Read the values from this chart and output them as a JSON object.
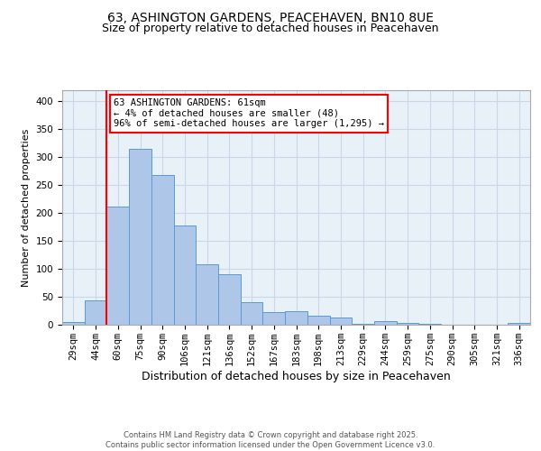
{
  "title_line1": "63, ASHINGTON GARDENS, PEACEHAVEN, BN10 8UE",
  "title_line2": "Size of property relative to detached houses in Peacehaven",
  "xlabel": "Distribution of detached houses by size in Peacehaven",
  "ylabel": "Number of detached properties",
  "categories": [
    "29sqm",
    "44sqm",
    "60sqm",
    "75sqm",
    "90sqm",
    "106sqm",
    "121sqm",
    "136sqm",
    "152sqm",
    "167sqm",
    "183sqm",
    "198sqm",
    "213sqm",
    "229sqm",
    "244sqm",
    "259sqm",
    "275sqm",
    "290sqm",
    "305sqm",
    "321sqm",
    "336sqm"
  ],
  "values": [
    5,
    44,
    212,
    315,
    268,
    178,
    108,
    90,
    40,
    23,
    24,
    16,
    13,
    2,
    7,
    3,
    2,
    0,
    0,
    0,
    4
  ],
  "bar_color": "#aec6e8",
  "bar_edge_color": "#5a9ad4",
  "vline_color": "red",
  "vline_index": 2,
  "annotation_text": "63 ASHINGTON GARDENS: 61sqm\n← 4% of detached houses are smaller (48)\n96% of semi-detached houses are larger (1,295) →",
  "annotation_box_color": "white",
  "annotation_box_edge_color": "red",
  "ylim": [
    0,
    420
  ],
  "yticks": [
    0,
    50,
    100,
    150,
    200,
    250,
    300,
    350,
    400
  ],
  "grid_color": "#c8d8e8",
  "bg_color": "#e8f0f8",
  "footnote": "Contains HM Land Registry data © Crown copyright and database right 2025.\nContains public sector information licensed under the Open Government Licence v3.0.",
  "title_fontsize": 10,
  "subtitle_fontsize": 9,
  "tick_fontsize": 7.5,
  "xlabel_fontsize": 9,
  "ylabel_fontsize": 8,
  "annotation_fontsize": 7.5
}
